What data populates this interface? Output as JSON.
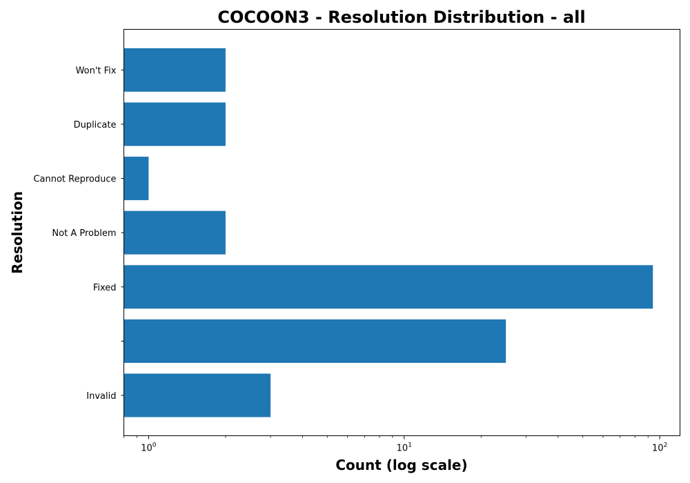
{
  "chart_data": {
    "type": "bar",
    "orientation": "horizontal",
    "title": "COCOON3 - Resolution Distribution - all",
    "xlabel": "Count (log scale)",
    "ylabel": "Resolution",
    "x_scale": "log",
    "xlim": [
      0.8,
      120
    ],
    "x_ticks": [
      {
        "value": 1,
        "base": "10",
        "exponent": "0"
      },
      {
        "value": 10,
        "base": "10",
        "exponent": "1"
      },
      {
        "value": 100,
        "base": "10",
        "exponent": "2"
      }
    ],
    "categories": [
      "Invalid",
      "",
      "Fixed",
      "Not A Problem",
      "Cannot Reproduce",
      "Duplicate",
      "Won't Fix"
    ],
    "values": [
      3,
      25,
      94,
      2,
      1,
      2,
      2
    ],
    "bar_color": "#1f77b4",
    "grid": false
  }
}
